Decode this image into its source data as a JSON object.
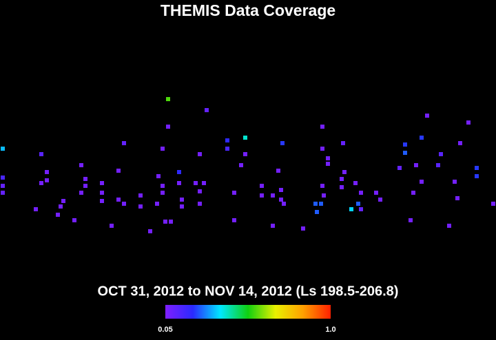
{
  "chart_data": {
    "type": "heatmap",
    "title": "THEMIS Data Coverage",
    "subtitle": "OCT 31, 2012 to NOV 14, 2012 (Ls 198.5-206.8)",
    "xlim": [
      0,
      360
    ],
    "ylim": [
      -90,
      90
    ],
    "clim": [
      0.05,
      1
    ],
    "cticks": [
      0.05,
      {
        "value": 1,
        "label": "1.0"
      }
    ],
    "colormap": [
      "#7f1fff",
      "#2a2aff",
      "#00e8ff",
      "#10d010",
      "#e8f000",
      "#ffa000",
      "#ff2000"
    ],
    "background": "#000000",
    "cells": [
      [
        122,
        48,
        0.57
      ],
      [
        150,
        40,
        0.1
      ],
      [
        310,
        36,
        0.07
      ],
      [
        340,
        31,
        0.07
      ],
      [
        122,
        28,
        0.07
      ],
      [
        234,
        28,
        0.07
      ],
      [
        178,
        20,
        0.4
      ],
      [
        165,
        18,
        0.2
      ],
      [
        165,
        12,
        0.15
      ],
      [
        90,
        16,
        0.1
      ],
      [
        205,
        16,
        0.22
      ],
      [
        249,
        16,
        0.1
      ],
      [
        306,
        20,
        0.22
      ],
      [
        294,
        15,
        0.22
      ],
      [
        294,
        9,
        0.25
      ],
      [
        334,
        16,
        0.07
      ],
      [
        2,
        12,
        0.33
      ],
      [
        118,
        12,
        0.07
      ],
      [
        234,
        12,
        0.07
      ],
      [
        30,
        8,
        0.12
      ],
      [
        145,
        8,
        0.07
      ],
      [
        178,
        8,
        0.07
      ],
      [
        175,
        0,
        0.07
      ],
      [
        238,
        5,
        0.07
      ],
      [
        238,
        1,
        0.07
      ],
      [
        320,
        8,
        0.12
      ],
      [
        318,
        0,
        0.12
      ],
      [
        59,
        0,
        0.07
      ],
      [
        86,
        -4,
        0.07
      ],
      [
        115,
        -8,
        0.07
      ],
      [
        130,
        -5,
        0.2
      ],
      [
        202,
        -4,
        0.07
      ],
      [
        250,
        -5,
        0.07
      ],
      [
        290,
        -2,
        0.1
      ],
      [
        302,
        0,
        0.07
      ],
      [
        346,
        -2,
        0.22
      ],
      [
        346,
        -8,
        0.22
      ],
      [
        34,
        -5,
        0.07
      ],
      [
        34,
        -11,
        0.07
      ],
      [
        2,
        -9,
        0.15
      ],
      [
        2,
        -15,
        0.1
      ],
      [
        2,
        -20,
        0.1
      ],
      [
        62,
        -10,
        0.07
      ],
      [
        62,
        -15,
        0.07
      ],
      [
        30,
        -13,
        0.07
      ],
      [
        74,
        -13,
        0.07
      ],
      [
        74,
        -20,
        0.07
      ],
      [
        74,
        -26,
        0.07
      ],
      [
        130,
        -13,
        0.07
      ],
      [
        142,
        -13,
        0.07
      ],
      [
        148,
        -13,
        0.07
      ],
      [
        145,
        -19,
        0.07
      ],
      [
        118,
        -15,
        0.07
      ],
      [
        118,
        -20,
        0.07
      ],
      [
        190,
        -15,
        0.07
      ],
      [
        190,
        -22,
        0.07
      ],
      [
        204,
        -18,
        0.07
      ],
      [
        204,
        -25,
        0.07
      ],
      [
        206,
        -28,
        0.07
      ],
      [
        234,
        -15,
        0.07
      ],
      [
        235,
        -22,
        0.07
      ],
      [
        248,
        -10,
        0.07
      ],
      [
        248,
        -16,
        0.07
      ],
      [
        258,
        -13,
        0.07
      ],
      [
        262,
        -20,
        0.07
      ],
      [
        273,
        -20,
        0.07
      ],
      [
        276,
        -25,
        0.07
      ],
      [
        300,
        -20,
        0.07
      ],
      [
        306,
        -12,
        0.07
      ],
      [
        330,
        -12,
        0.07
      ],
      [
        332,
        -24,
        0.07
      ],
      [
        46,
        -26,
        0.07
      ],
      [
        44,
        -30,
        0.07
      ],
      [
        59,
        -20,
        0.07
      ],
      [
        86,
        -25,
        0.07
      ],
      [
        90,
        -28,
        0.07
      ],
      [
        102,
        -22,
        0.07
      ],
      [
        102,
        -30,
        0.07
      ],
      [
        114,
        -28,
        0.07
      ],
      [
        132,
        -25,
        0.07
      ],
      [
        132,
        -30,
        0.07
      ],
      [
        145,
        -28,
        0.07
      ],
      [
        170,
        -20,
        0.07
      ],
      [
        198,
        -22,
        0.07
      ],
      [
        229,
        -28,
        0.25
      ],
      [
        233,
        -28,
        0.25
      ],
      [
        230,
        -34,
        0.25
      ],
      [
        260,
        -28,
        0.25
      ],
      [
        255,
        -32,
        0.35
      ],
      [
        262,
        -32,
        0.1
      ],
      [
        358,
        -28,
        0.07
      ],
      [
        26,
        -32,
        0.07
      ],
      [
        42,
        -36,
        0.07
      ],
      [
        54,
        -40,
        0.07
      ],
      [
        81,
        -44,
        0.07
      ],
      [
        120,
        -41,
        0.07
      ],
      [
        124,
        -41,
        0.07
      ],
      [
        170,
        -40,
        0.07
      ],
      [
        198,
        -44,
        0.07
      ],
      [
        220,
        -46,
        0.07
      ],
      [
        298,
        -40,
        0.07
      ],
      [
        326,
        -44,
        0.07
      ],
      [
        109,
        -48,
        0.07
      ]
    ]
  }
}
